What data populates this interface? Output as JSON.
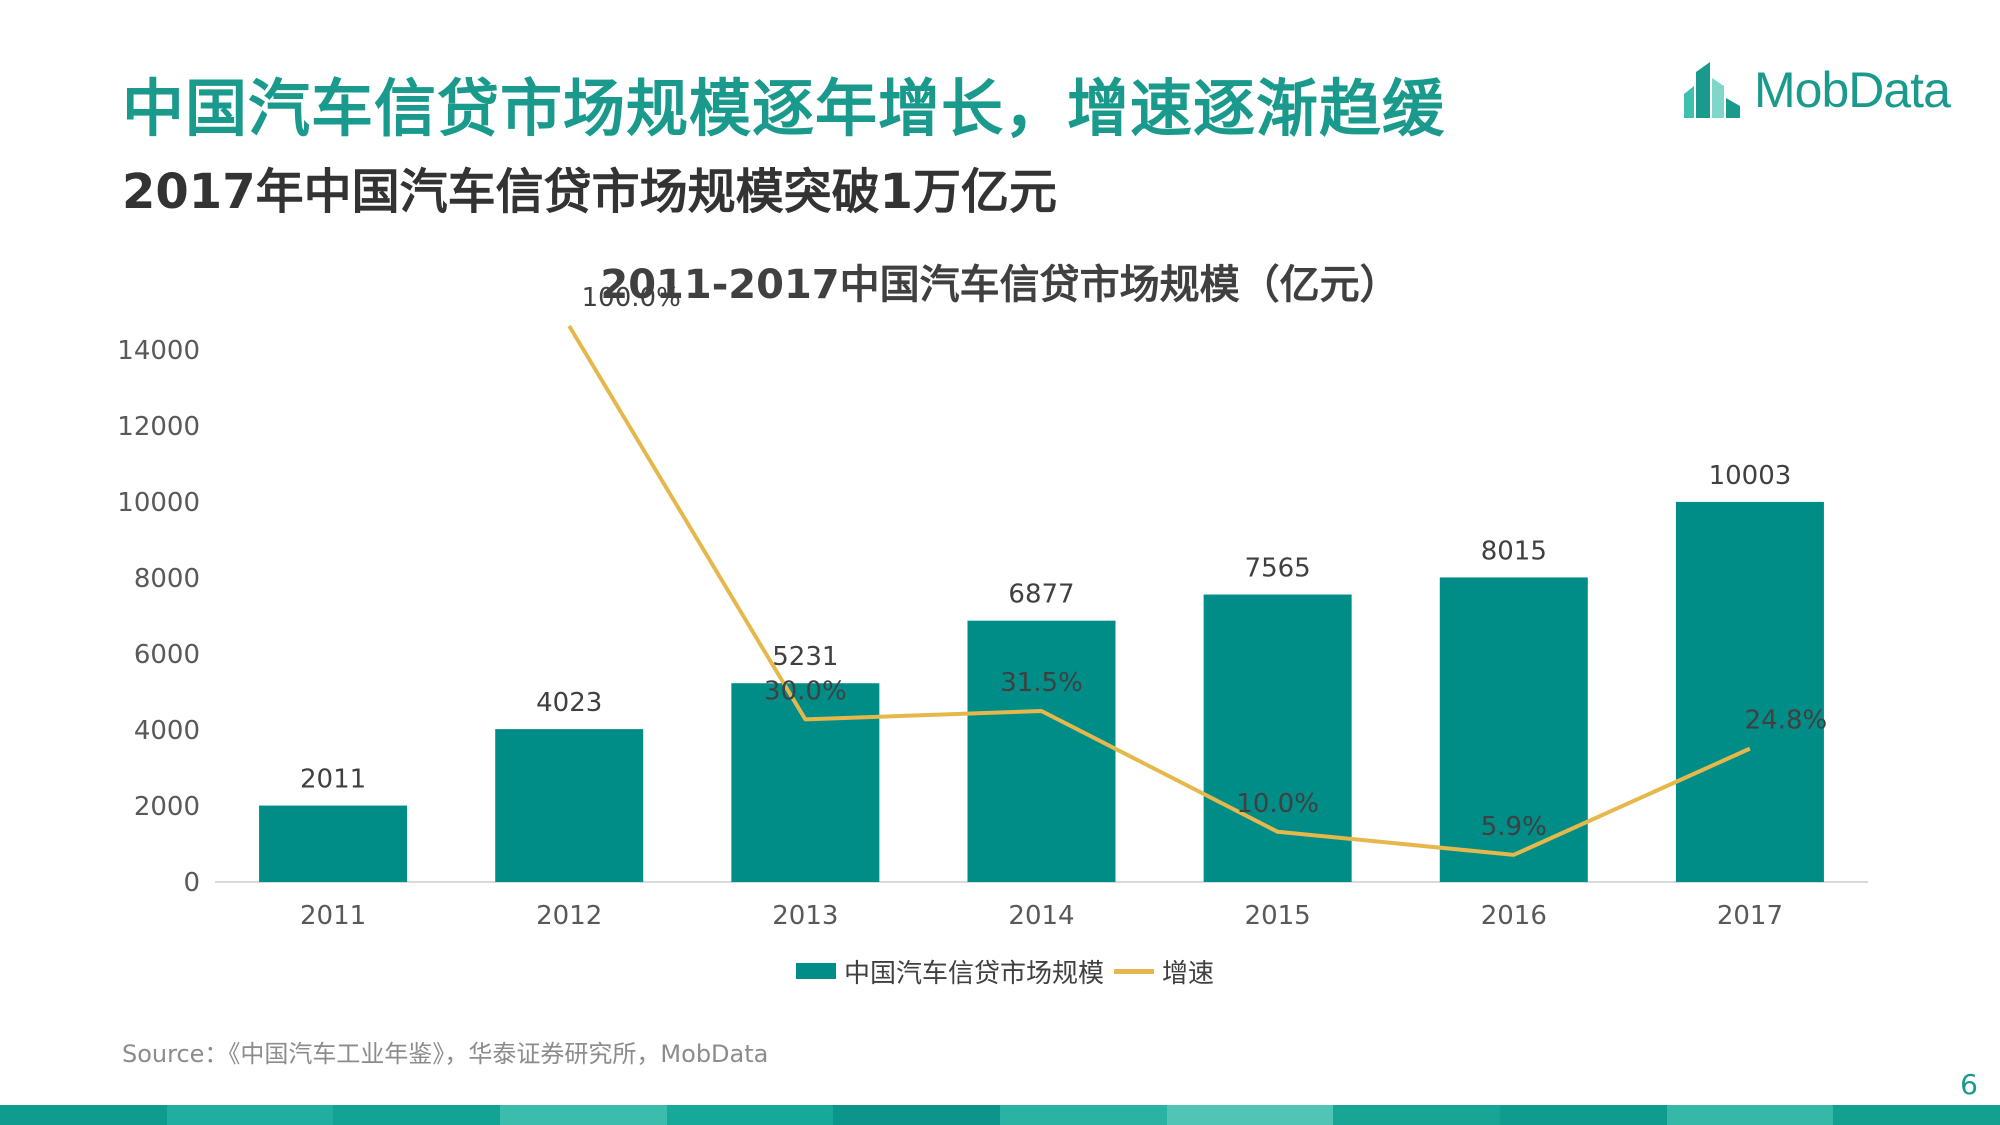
{
  "header": {
    "title": "中国汽车信贷市场规模逐年增长，增速逐渐趋缓",
    "subtitle": "2017年中国汽车信贷市场规模突破1万亿元"
  },
  "logo": {
    "text": "MobData",
    "color": "#1a9a8c"
  },
  "chart_data": {
    "type": "bar",
    "title": "2011-2017中国汽车信贷市场规模（亿元）",
    "categories": [
      "2011",
      "2012",
      "2013",
      "2014",
      "2015",
      "2016",
      "2017"
    ],
    "series": [
      {
        "name": "中国汽车信贷市场规模",
        "type": "bar",
        "values": [
          2011,
          4023,
          5231,
          6877,
          7565,
          8015,
          10003
        ],
        "labels": [
          "2011",
          "4023",
          "5231",
          "6877",
          "7565",
          "8015",
          "10003"
        ],
        "color": "#008c87"
      },
      {
        "name": "增速",
        "type": "line",
        "values": [
          null,
          100.0,
          30.0,
          31.5,
          10.0,
          5.9,
          24.8
        ],
        "labels": [
          "",
          "100.0%",
          "30.0%",
          "31.5%",
          "10.0%",
          "5.9%",
          "24.8%"
        ],
        "color": "#e6b84b"
      }
    ],
    "yticks": [
      "0",
      "2000",
      "4000",
      "6000",
      "8000",
      "10000",
      "12000",
      "14000"
    ],
    "ylim": [
      0,
      14000
    ],
    "legend_position": "bottom",
    "grid": false
  },
  "footer": {
    "source": "Source：《中国汽车工业年鉴》，华泰证券研究所，MobData",
    "page_number": "6"
  },
  "colors": {
    "accent": "#1a9a8c",
    "bar": "#008c87",
    "line": "#e6b84b",
    "band": [
      "#0f9c8e",
      "#1fae9f",
      "#12a394",
      "#3bbcac",
      "#16a898",
      "#0c958a",
      "#29b3a3",
      "#52c4b6",
      "#18a596",
      "#0f9c8e",
      "#35b8a8",
      "#13a091"
    ]
  }
}
